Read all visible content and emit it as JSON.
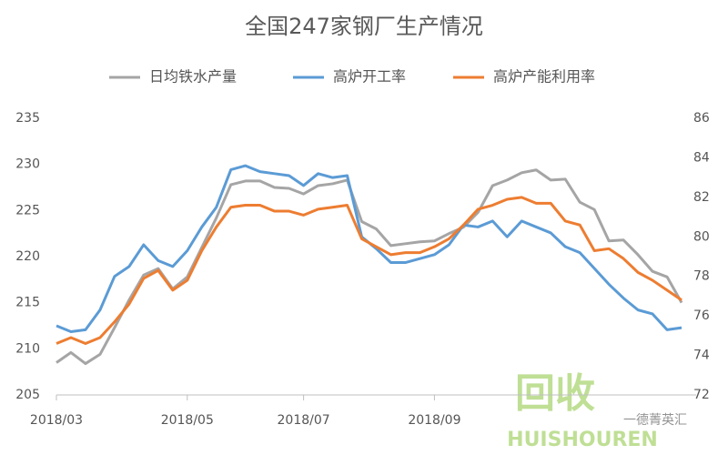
{
  "chart_data": {
    "type": "line",
    "title": "全国247家钢厂生产情况",
    "categories": [
      "2018/03",
      null,
      null,
      null,
      null,
      null,
      null,
      null,
      null,
      "2018/05",
      null,
      null,
      null,
      null,
      null,
      null,
      null,
      "2018/07",
      null,
      null,
      null,
      null,
      null,
      null,
      null,
      null,
      "2018/09",
      null,
      null,
      null,
      null,
      null,
      null,
      null,
      null,
      null,
      null,
      null,
      null,
      null,
      null,
      null,
      null,
      null
    ],
    "series": [
      {
        "name": "日均铁水产量",
        "color": "#a5a5a5",
        "axis": "y",
        "values": [
          208.5,
          209.6,
          208.4,
          209.4,
          212.3,
          215.3,
          218,
          218.7,
          216.5,
          217.8,
          221,
          224.2,
          227.8,
          228.2,
          228.2,
          227.5,
          227.4,
          226.8,
          227.7,
          227.9,
          228.3,
          223.8,
          223,
          221.2,
          221.4,
          221.6,
          221.7,
          222.5,
          223.2,
          224.8,
          227.7,
          228.3,
          229.1,
          229.4,
          228.3,
          228.4,
          225.9,
          225.1,
          221.7,
          221.8,
          220.2,
          218.4,
          217.8,
          215
        ]
      },
      {
        "name": "高炉开工率",
        "color": "#5b9bd5",
        "axis": "y2",
        "values": [
          75.5,
          75.2,
          75.3,
          76.3,
          78,
          78.5,
          79.6,
          78.8,
          78.5,
          79.3,
          80.5,
          81.5,
          83.4,
          83.6,
          83.3,
          83.2,
          83.1,
          82.6,
          83.2,
          83,
          83.1,
          80,
          79.4,
          78.7,
          78.7,
          78.9,
          79.1,
          79.6,
          80.6,
          80.5,
          80.8,
          80,
          80.8,
          80.5,
          80.2,
          79.5,
          79.2,
          78.4,
          77.6,
          76.9,
          76.3,
          76.1,
          75.3,
          75.4
        ]
      },
      {
        "name": "高炉产能利用率",
        "color": "#ed7d31",
        "axis": "y2",
        "values": [
          74.6,
          74.9,
          74.6,
          74.9,
          75.7,
          76.6,
          77.9,
          78.3,
          77.3,
          77.8,
          79.3,
          80.5,
          81.5,
          81.6,
          81.6,
          81.3,
          81.3,
          81.1,
          81.4,
          81.5,
          81.6,
          79.9,
          79.5,
          79.1,
          79.2,
          79.2,
          79.5,
          79.9,
          80.6,
          81.4,
          81.6,
          81.9,
          82,
          81.7,
          81.7,
          80.8,
          80.6,
          79.3,
          79.4,
          78.9,
          78.2,
          77.8,
          77.3,
          76.8
        ]
      }
    ],
    "ylim": [
      205,
      235
    ],
    "yticks": [
      205,
      210,
      215,
      220,
      225,
      230,
      235
    ],
    "y2lim": [
      72,
      86
    ],
    "y2ticks": [
      72,
      74,
      76,
      78,
      80,
      82,
      84,
      86
    ],
    "legend": "top",
    "grid": false
  },
  "watermark": {
    "logo": "回收",
    "brand": "HUISHOUREN",
    "source": "一德菁英汇"
  }
}
